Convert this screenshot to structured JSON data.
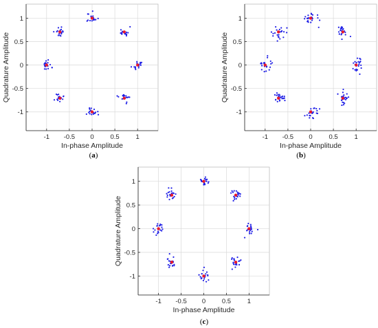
{
  "colors": {
    "points": "#1f1fe6",
    "ideal": "#e8192c",
    "grid": "#d9d9d9",
    "axis": "#262626",
    "box": "#bdbdbd"
  },
  "chart_data": [
    {
      "type": "scatter",
      "title": "",
      "caption": "(a)",
      "xlabel": "In-phase Amplitude",
      "ylabel": "Quadrature Amplitude",
      "xlim": [
        -1.45,
        1.45
      ],
      "ylim": [
        -1.4,
        1.3
      ],
      "xticks": [
        -1,
        -0.5,
        0,
        0.5,
        1
      ],
      "yticks": [
        -1,
        -0.5,
        0,
        0.5,
        1
      ],
      "xtick_labels": [
        "-1",
        "-0.5",
        "0",
        "0.5",
        "1"
      ],
      "ytick_labels": [
        "-1",
        "-0.5",
        "0",
        "0.5",
        "1"
      ],
      "grid": true,
      "constellation": [
        [
          1,
          0
        ],
        [
          0.707,
          0.707
        ],
        [
          0,
          1
        ],
        [
          -0.707,
          0.707
        ],
        [
          -1,
          0
        ],
        [
          -0.707,
          -0.707
        ],
        [
          0,
          -1
        ],
        [
          0.707,
          -0.707
        ]
      ],
      "cluster_spread": 0.055,
      "points_per_cluster": 18,
      "seed": 11
    },
    {
      "type": "scatter",
      "title": "",
      "caption": "(b)",
      "xlabel": "In-phase Amplitude",
      "ylabel": "Quadrature Amplitude",
      "xlim": [
        -1.45,
        1.45
      ],
      "ylim": [
        -1.4,
        1.3
      ],
      "xticks": [
        -1,
        -0.5,
        0,
        0.5,
        1
      ],
      "yticks": [
        -1,
        -0.5,
        0,
        0.5,
        1
      ],
      "xtick_labels": [
        "-1",
        "-0.5",
        "0",
        "0.5",
        "1"
      ],
      "ytick_labels": [
        "-1",
        "-0.5",
        "0",
        "0.5",
        "1"
      ],
      "grid": true,
      "constellation": [
        [
          1,
          0
        ],
        [
          0.707,
          0.707
        ],
        [
          0,
          1
        ],
        [
          -0.707,
          0.707
        ],
        [
          -1,
          0
        ],
        [
          -0.707,
          -0.707
        ],
        [
          0,
          -1
        ],
        [
          0.707,
          -0.707
        ]
      ],
      "cluster_spread": 0.075,
      "points_per_cluster": 22,
      "seed": 29
    },
    {
      "type": "scatter",
      "title": "",
      "caption": "(c)",
      "xlabel": "In-phase Amplitude",
      "ylabel": "Quadrature Amplitude",
      "xlim": [
        -1.45,
        1.45
      ],
      "ylim": [
        -1.4,
        1.3
      ],
      "xticks": [
        -1,
        -0.5,
        0,
        0.5,
        1
      ],
      "yticks": [
        -1,
        -0.5,
        0,
        0.5,
        1
      ],
      "xtick_labels": [
        "-1",
        "-0.5",
        "0",
        "0.5",
        "1"
      ],
      "ytick_labels": [
        "-1",
        "-0.5",
        "0",
        "0.5",
        "1"
      ],
      "grid": true,
      "constellation": [
        [
          1,
          0
        ],
        [
          0.707,
          0.707
        ],
        [
          0,
          1
        ],
        [
          -0.707,
          0.707
        ],
        [
          -1,
          0
        ],
        [
          -0.707,
          -0.707
        ],
        [
          0,
          -1
        ],
        [
          0.707,
          -0.707
        ]
      ],
      "cluster_spread": 0.06,
      "points_per_cluster": 20,
      "seed": 47
    }
  ]
}
